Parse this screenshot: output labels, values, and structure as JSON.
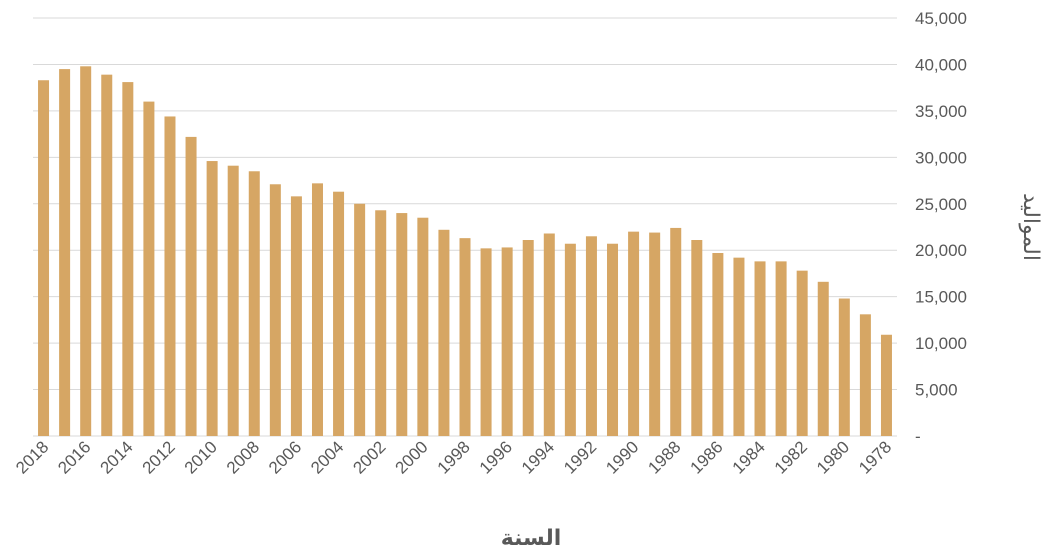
{
  "chart_data": {
    "type": "bar",
    "xlabel": "السنة",
    "ylabel": "المواليد",
    "ylim": [
      0,
      45000
    ],
    "yticks": [
      {
        "value": 0,
        "label": "-"
      },
      {
        "value": 5000,
        "label": "5,000"
      },
      {
        "value": 10000,
        "label": "10,000"
      },
      {
        "value": 15000,
        "label": "15,000"
      },
      {
        "value": 20000,
        "label": "20,000"
      },
      {
        "value": 25000,
        "label": "25,000"
      },
      {
        "value": 30000,
        "label": "30,000"
      },
      {
        "value": 35000,
        "label": "35,000"
      },
      {
        "value": 40000,
        "label": "40,000"
      },
      {
        "value": 45000,
        "label": "45,000"
      }
    ],
    "grid": true,
    "yaxis_side": "right",
    "x_direction": "descending",
    "bar_color": "#D6A664",
    "categories": [
      "2018",
      "2017",
      "2016",
      "2015",
      "2014",
      "2013",
      "2012",
      "2011",
      "2010",
      "2009",
      "2008",
      "2007",
      "2006",
      "2005",
      "2004",
      "2003",
      "2002",
      "2001",
      "2000",
      "1999",
      "1998",
      "1997",
      "1996",
      "1995",
      "1994",
      "1993",
      "1992",
      "1991",
      "1990",
      "1989",
      "1988",
      "1987",
      "1986",
      "1985",
      "1984",
      "1983",
      "1982",
      "1981",
      "1980",
      "1979",
      "1978"
    ],
    "tick_labels": [
      "2018",
      "2016",
      "2014",
      "2012",
      "2010",
      "2008",
      "2006",
      "2004",
      "2002",
      "2000",
      "1998",
      "1996",
      "1994",
      "1992",
      "1990",
      "1988",
      "1986",
      "1984",
      "1982",
      "1980",
      "1978"
    ],
    "values": [
      38300,
      39500,
      39800,
      38900,
      38100,
      36000,
      34400,
      32200,
      29600,
      29100,
      28500,
      27100,
      25800,
      27200,
      26300,
      25000,
      24300,
      24000,
      23500,
      22200,
      21300,
      20200,
      20300,
      21100,
      21800,
      20700,
      21500,
      20700,
      22000,
      21900,
      22400,
      21100,
      19700,
      19200,
      18800,
      18800,
      17800,
      16600,
      14800,
      13100,
      10900
    ]
  }
}
